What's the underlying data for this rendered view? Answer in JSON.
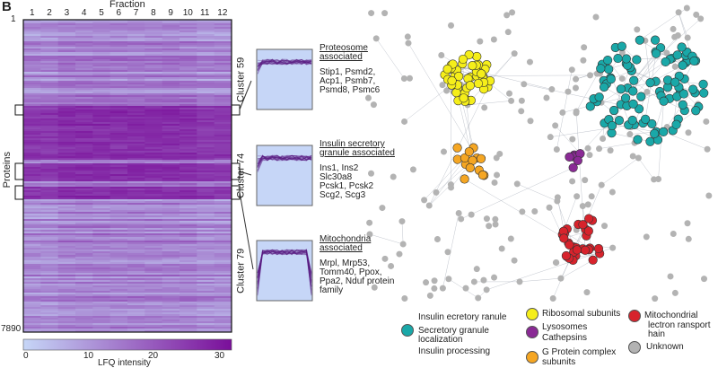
{
  "panel_letter": "B",
  "heatmap": {
    "x_title": "Fraction",
    "fractions": [
      "1",
      "2",
      "3",
      "4",
      "5",
      "6",
      "7",
      "8",
      "9",
      "10",
      "11",
      "12"
    ],
    "y_title": "Proteins",
    "y_top": "1",
    "y_bottom": "7890",
    "colorbar": {
      "label": "LFQ intensity",
      "ticks": [
        "0",
        "10",
        "20",
        "30"
      ],
      "min_color": "#c6d6f7",
      "max_color": "#7a0f9a"
    }
  },
  "clusters": [
    {
      "name": "Cluster 59",
      "title_line1": "Proteosome",
      "title_line2": "associated",
      "genes": [
        "Stip1, Psmd2,",
        "Acp1, Psmb7,",
        "Psmd8, Psmc6"
      ]
    },
    {
      "name": "Cluster 74",
      "title_line1": "Insulin secretory",
      "title_line2": "granule associated",
      "genes": [
        "Ins1, Ins2",
        "Slc30a8",
        "Pcsk1, Pcsk2",
        "Scg2, Scg3"
      ]
    },
    {
      "name": "Cluster 79",
      "title_line1": "Mitochondria",
      "title_line2": "associated",
      "genes": [
        "Mrpl, Mrp53,",
        "Tomm40, Ppox,",
        "Ppa2, Nduf protein",
        "family"
      ]
    }
  ],
  "legend": {
    "teal": {
      "color": "#1aa8a8",
      "lines": [
        "Insulin ecretory ranule",
        "Secretory granule",
        "localization",
        "Insulin processing"
      ]
    },
    "yellow": {
      "color": "#f5ee1a",
      "label": "Ribosomal subunits"
    },
    "purple": {
      "color": "#8a2a95",
      "lines": [
        "Lysosomes",
        "Cathepsins"
      ]
    },
    "orange": {
      "color": "#f5a623",
      "lines": [
        "G Protein complex",
        "subunits"
      ]
    },
    "red": {
      "color": "#d7232c",
      "lines": [
        "Mitochondrial",
        "lectron ransport",
        "hain"
      ]
    },
    "grey": {
      "color": "#b3b3b3",
      "label": "Unknown"
    }
  }
}
